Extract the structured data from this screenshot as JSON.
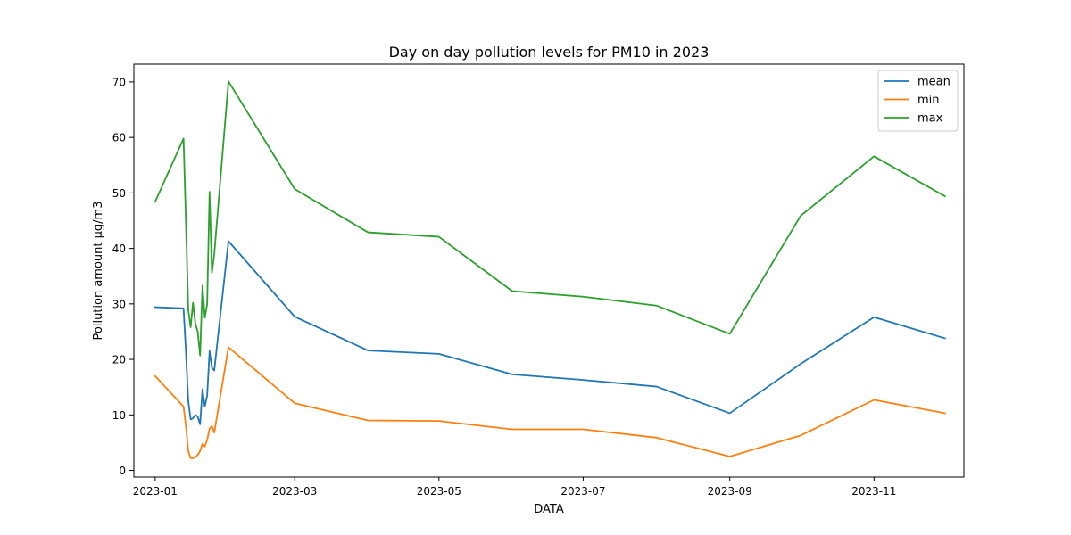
{
  "chart_data": {
    "type": "line",
    "title": "Day on day pollution levels for PM10 in 2023",
    "xlabel": "DATA",
    "ylabel": "Pollution amount µg/m3",
    "ylim": [
      -1.2,
      73.2
    ],
    "xlim": [
      "2022-12-23",
      "2023-12-09"
    ],
    "xticks": [
      "2023-01",
      "2023-03",
      "2023-05",
      "2023-07",
      "2023-09",
      "2023-11"
    ],
    "yticks": [
      0,
      10,
      20,
      30,
      40,
      50,
      60,
      70
    ],
    "legend": "top-right",
    "grid": false,
    "series": [
      {
        "name": "mean",
        "color": "#1f77b4",
        "points": [
          [
            "2023-01-01",
            29.4
          ],
          [
            "2023-01-13",
            29.2
          ],
          [
            "2023-01-14",
            21.5
          ],
          [
            "2023-01-15",
            12.5
          ],
          [
            "2023-01-16",
            9.2
          ],
          [
            "2023-01-17",
            9.4
          ],
          [
            "2023-01-18",
            10.0
          ],
          [
            "2023-01-19",
            9.7
          ],
          [
            "2023-01-20",
            8.3
          ],
          [
            "2023-01-21",
            14.6
          ],
          [
            "2023-01-22",
            11.5
          ],
          [
            "2023-01-23",
            13.5
          ],
          [
            "2023-01-24",
            21.5
          ],
          [
            "2023-01-25",
            18.5
          ],
          [
            "2023-01-26",
            18.0
          ],
          [
            "2023-02-01",
            41.3
          ],
          [
            "2023-03-01",
            27.7
          ],
          [
            "2023-04-01",
            21.6
          ],
          [
            "2023-05-01",
            21.0
          ],
          [
            "2023-06-01",
            17.3
          ],
          [
            "2023-07-01",
            16.3
          ],
          [
            "2023-08-01",
            15.1
          ],
          [
            "2023-09-01",
            10.3
          ],
          [
            "2023-10-01",
            19.2
          ],
          [
            "2023-11-01",
            27.6
          ],
          [
            "2023-12-01",
            23.8
          ]
        ]
      },
      {
        "name": "min",
        "color": "#ff7f0e",
        "points": [
          [
            "2023-01-01",
            17.0
          ],
          [
            "2023-01-13",
            11.5
          ],
          [
            "2023-01-14",
            8.0
          ],
          [
            "2023-01-15",
            3.5
          ],
          [
            "2023-01-16",
            2.2
          ],
          [
            "2023-01-17",
            2.2
          ],
          [
            "2023-01-18",
            2.4
          ],
          [
            "2023-01-19",
            2.8
          ],
          [
            "2023-01-20",
            3.5
          ],
          [
            "2023-01-21",
            4.8
          ],
          [
            "2023-01-22",
            4.3
          ],
          [
            "2023-01-23",
            5.5
          ],
          [
            "2023-01-24",
            7.5
          ],
          [
            "2023-01-25",
            8.0
          ],
          [
            "2023-01-26",
            6.8
          ],
          [
            "2023-02-01",
            22.2
          ],
          [
            "2023-03-01",
            12.1
          ],
          [
            "2023-04-01",
            9.0
          ],
          [
            "2023-05-01",
            8.9
          ],
          [
            "2023-06-01",
            7.4
          ],
          [
            "2023-07-01",
            7.4
          ],
          [
            "2023-08-01",
            5.9
          ],
          [
            "2023-09-01",
            2.5
          ],
          [
            "2023-10-01",
            6.3
          ],
          [
            "2023-11-01",
            12.7
          ],
          [
            "2023-12-01",
            10.3
          ]
        ]
      },
      {
        "name": "max",
        "color": "#2ca02c",
        "points": [
          [
            "2023-01-01",
            48.4
          ],
          [
            "2023-01-13",
            59.8
          ],
          [
            "2023-01-14",
            45.0
          ],
          [
            "2023-01-15",
            29.0
          ],
          [
            "2023-01-16",
            25.8
          ],
          [
            "2023-01-17",
            30.2
          ],
          [
            "2023-01-18",
            26.5
          ],
          [
            "2023-01-19",
            25.0
          ],
          [
            "2023-01-20",
            20.7
          ],
          [
            "2023-01-21",
            33.3
          ],
          [
            "2023-01-22",
            27.5
          ],
          [
            "2023-01-23",
            30.0
          ],
          [
            "2023-01-24",
            50.2
          ],
          [
            "2023-01-25",
            35.6
          ],
          [
            "2023-01-26",
            39.0
          ],
          [
            "2023-02-01",
            70.1
          ],
          [
            "2023-03-01",
            50.7
          ],
          [
            "2023-04-01",
            42.9
          ],
          [
            "2023-05-01",
            42.1
          ],
          [
            "2023-06-01",
            32.3
          ],
          [
            "2023-07-01",
            31.3
          ],
          [
            "2023-08-01",
            29.7
          ],
          [
            "2023-09-01",
            24.6
          ],
          [
            "2023-10-01",
            45.9
          ],
          [
            "2023-11-01",
            56.6
          ],
          [
            "2023-12-01",
            49.4
          ]
        ]
      }
    ]
  }
}
